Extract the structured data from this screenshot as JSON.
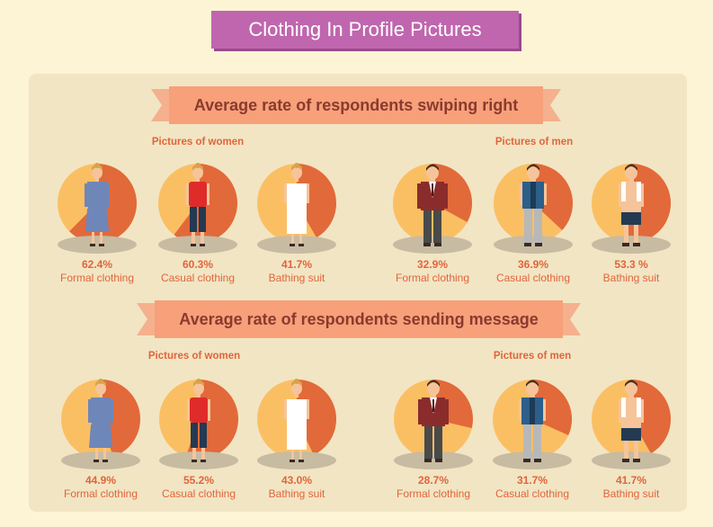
{
  "title": "Clothing In Profile Pictures",
  "colors": {
    "orange": "#e2693a",
    "light": "#fbbf63",
    "shadow": "#c7bba2",
    "accent": "#c066ae"
  },
  "sections": [
    {
      "heading": "Average rate of respondents swiping right",
      "women_label": "Pictures of women",
      "men_label": "Pictures of men"
    },
    {
      "heading": "Average rate  of respondents sending message",
      "women_label": "Pictures of women",
      "men_label": "Pictures of men"
    }
  ],
  "chart_data": [
    {
      "type": "pie",
      "title": "Average rate of respondents swiping right",
      "groups": [
        {
          "name": "Pictures of women",
          "items": [
            {
              "label": "Formal clothing",
              "value": 62.4,
              "text": "62.4%"
            },
            {
              "label": "Casual clothing",
              "value": 60.3,
              "text": "60.3%"
            },
            {
              "label": "Bathing suit",
              "value": 41.7,
              "text": "41.7%"
            }
          ]
        },
        {
          "name": "Pictures of men",
          "items": [
            {
              "label": "Formal clothing",
              "value": 32.9,
              "text": "32.9%"
            },
            {
              "label": "Casual clothing",
              "value": 36.9,
              "text": "36.9%"
            },
            {
              "label": "Bathing suit",
              "value": 53.3,
              "text": "53.3 %"
            }
          ]
        }
      ]
    },
    {
      "type": "pie",
      "title": "Average rate  of respondents sending message",
      "groups": [
        {
          "name": "Pictures of women",
          "items": [
            {
              "label": "Formal clothing",
              "value": 44.9,
              "text": "44.9%"
            },
            {
              "label": "Casual clothing",
              "value": 55.2,
              "text": "55.2%"
            },
            {
              "label": "Bathing suit",
              "value": 43.0,
              "text": "43.0%"
            }
          ]
        },
        {
          "name": "Pictures of men",
          "items": [
            {
              "label": "Formal clothing",
              "value": 28.7,
              "text": "28.7%"
            },
            {
              "label": "Casual clothing",
              "value": 31.7,
              "text": "31.7%"
            },
            {
              "label": "Bathing suit",
              "value": 41.7,
              "text": "41.7%"
            }
          ]
        }
      ]
    }
  ]
}
